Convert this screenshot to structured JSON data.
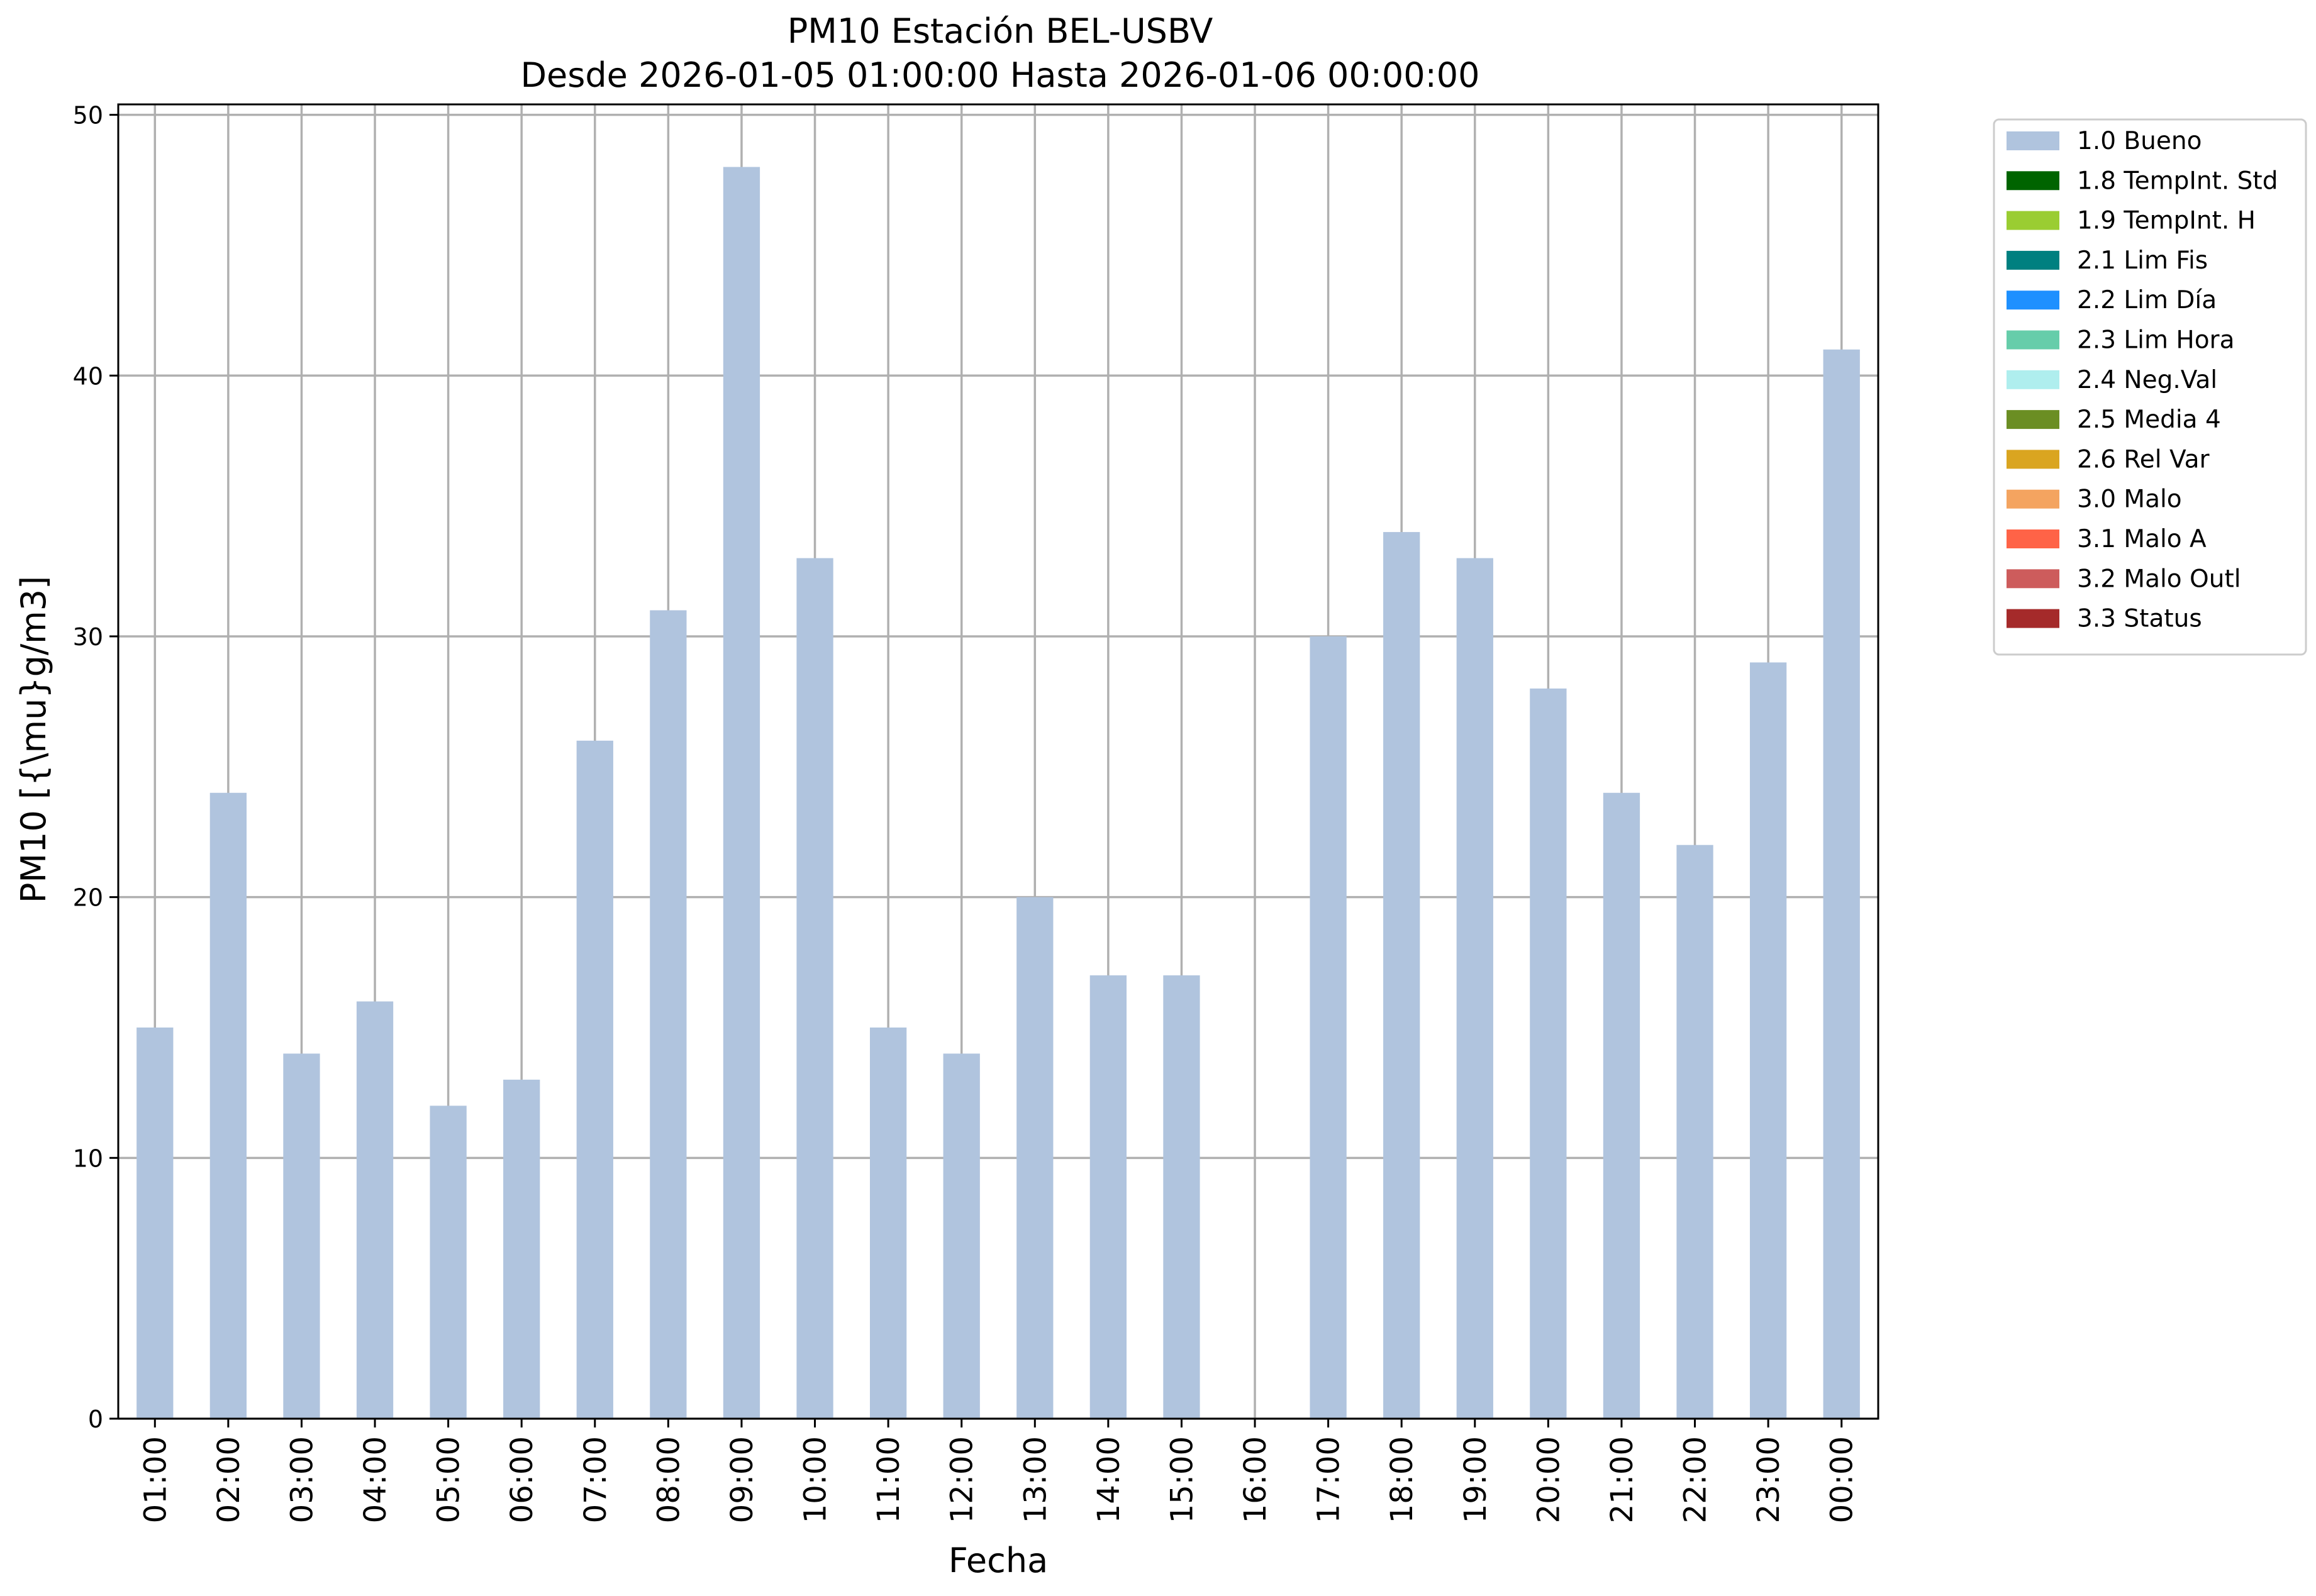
{
  "chart_data": {
    "type": "bar",
    "title": "PM10 Estación BEL-USBV",
    "subtitle": "Desde 2026-01-05 01:00:00 Hasta 2026-01-06 00:00:00",
    "xlabel": "Fecha",
    "ylabel": "PM10 [{\\mu}g/m3]",
    "ylim": [
      0,
      50.4
    ],
    "yticks": [
      0,
      10,
      20,
      30,
      40,
      50
    ],
    "grid": true,
    "legend_position": "outside-right-top",
    "categories": [
      "01:00",
      "02:00",
      "03:00",
      "04:00",
      "05:00",
      "06:00",
      "07:00",
      "08:00",
      "09:00",
      "10:00",
      "11:00",
      "12:00",
      "13:00",
      "14:00",
      "15:00",
      "16:00",
      "17:00",
      "18:00",
      "19:00",
      "20:00",
      "21:00",
      "22:00",
      "23:00",
      "00:00"
    ],
    "series": [
      {
        "name": "1.0 Bueno",
        "color": "#b0c4de",
        "values": [
          15,
          24,
          14,
          16,
          12,
          13,
          26,
          31,
          48,
          33,
          15,
          14,
          20,
          17,
          17,
          null,
          30,
          34,
          33,
          28,
          24,
          22,
          29,
          41
        ]
      }
    ],
    "legend": [
      {
        "label": "1.0 Bueno",
        "color": "#b0c4de"
      },
      {
        "label": "1.8 TempInt. Std",
        "color": "#006400"
      },
      {
        "label": "1.9 TempInt. H",
        "color": "#9acd32"
      },
      {
        "label": "2.1 Lim Fis",
        "color": "#008080"
      },
      {
        "label": "2.2 Lim Día",
        "color": "#1e90ff"
      },
      {
        "label": "2.3 Lim Hora",
        "color": "#66cdaa"
      },
      {
        "label": "2.4 Neg.Val",
        "color": "#afeeee"
      },
      {
        "label": "2.5 Media 4",
        "color": "#6b8e23"
      },
      {
        "label": "2.6 Rel Var",
        "color": "#daa520"
      },
      {
        "label": "3.0 Malo",
        "color": "#f4a460"
      },
      {
        "label": "3.1 Malo A",
        "color": "#ff6347"
      },
      {
        "label": "3.2 Malo Outl",
        "color": "#cd5c5c"
      },
      {
        "label": "3.3 Status",
        "color": "#a52a2a"
      }
    ]
  }
}
